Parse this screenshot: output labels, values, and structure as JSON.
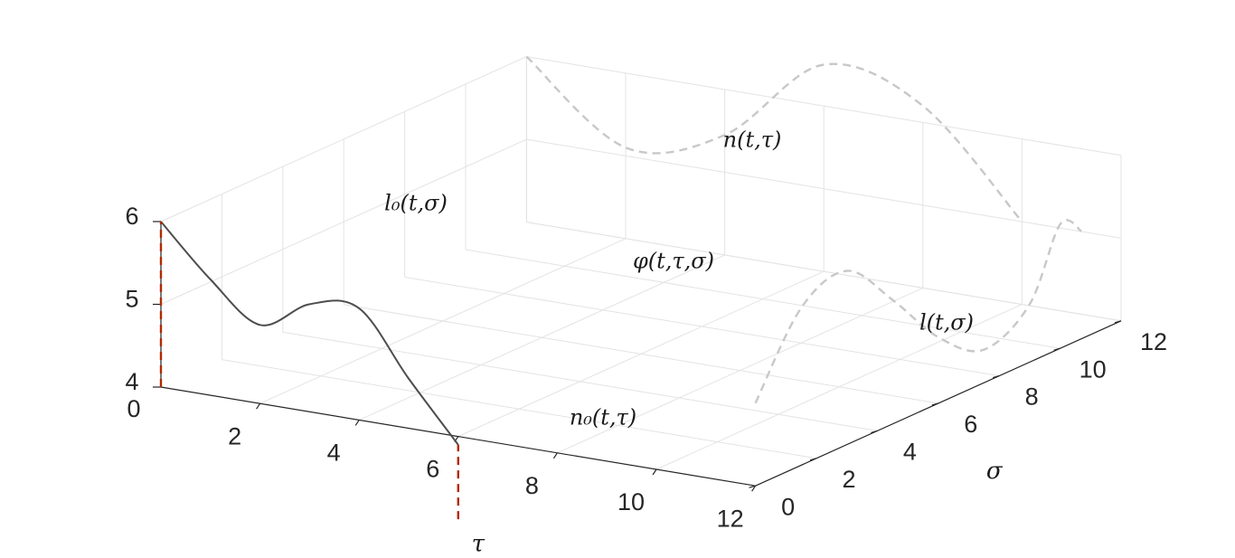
{
  "chart_data": {
    "type": "line3d",
    "axes": {
      "x": {
        "label": "τ",
        "range": [
          0,
          12
        ],
        "ticks": [
          "2",
          "4",
          "6",
          "8",
          "10",
          "12"
        ]
      },
      "y": {
        "label": "σ",
        "range": [
          0,
          12
        ],
        "ticks": [
          "0",
          "2",
          "4",
          "6",
          "8",
          "10",
          "12"
        ]
      },
      "z": {
        "label": "",
        "range": [
          4,
          6
        ],
        "ticks": [
          "4",
          "5",
          "6"
        ],
        "origin_tick": "0"
      }
    },
    "grid": true,
    "series": [
      {
        "name": "φ(t,τ,σ)",
        "style": "solid",
        "color": "#4d4d4d",
        "points": [
          [
            0,
            0,
            6
          ],
          [
            1,
            0,
            5.4
          ],
          [
            2,
            0,
            4.95
          ],
          [
            3,
            0,
            5.3
          ],
          [
            4,
            0,
            5.35
          ],
          [
            5,
            0,
            4.6
          ],
          [
            6,
            0,
            3.9
          ]
        ]
      },
      {
        "name": "n(t,τ)",
        "style": "dashed",
        "color": "#c8c8c8",
        "points": [
          [
            0,
            12,
            6
          ],
          [
            2,
            12,
            5.1
          ],
          [
            4,
            12,
            5.45
          ],
          [
            6,
            12,
            6.5
          ],
          [
            8,
            12,
            6.2
          ],
          [
            10,
            12,
            5.0
          ]
        ]
      },
      {
        "name": "l(t,σ)",
        "style": "dashed",
        "color": "#c8c8c8",
        "points": [
          [
            12,
            0,
            5.0
          ],
          [
            12,
            1.5,
            5.9
          ],
          [
            12,
            3,
            6.1
          ],
          [
            12,
            4.5,
            5.5
          ],
          [
            12,
            6,
            4.8
          ],
          [
            12,
            7.5,
            4.4
          ],
          [
            12,
            9,
            4.7
          ],
          [
            12,
            10,
            5.5
          ],
          [
            12,
            10.7,
            5.3
          ]
        ]
      },
      {
        "name": "l₀(t,σ)",
        "style": "dashed",
        "color": "#b22a00",
        "points": [
          [
            0,
            0,
            4
          ],
          [
            0,
            0,
            6
          ]
        ]
      },
      {
        "name": "n₀(t,τ)",
        "style": "dashed",
        "color": "#b22a00",
        "points": [
          [
            6,
            0,
            3.0
          ],
          [
            6,
            0,
            3.9
          ]
        ]
      }
    ],
    "annotations": [
      {
        "text": "φ(t,τ,σ)"
      },
      {
        "text": "n(t,τ)"
      },
      {
        "text": "l(t,σ)"
      },
      {
        "text": "l₀(t,σ)"
      },
      {
        "text": "n₀(t,τ)"
      }
    ]
  }
}
